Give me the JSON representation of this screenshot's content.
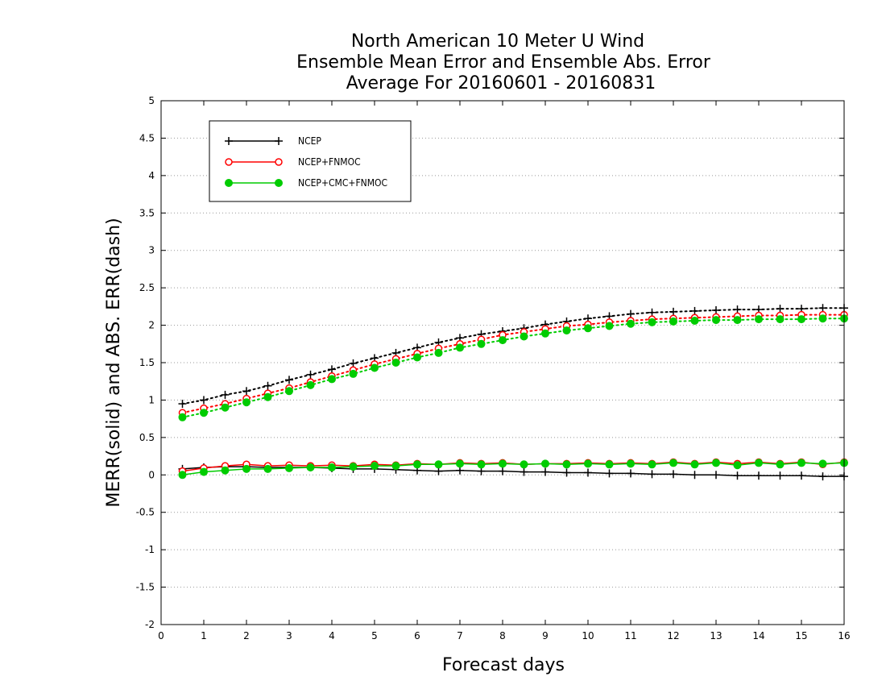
{
  "chart_data": {
    "type": "line",
    "title_lines": [
      "North American 10 Meter U Wind",
      "Ensemble Mean Error and Ensemble Abs. Error",
      "Average For 20160601 - 20160831"
    ],
    "xlabel": "Forecast days",
    "ylabel": "MERR(solid) and ABS. ERR(dash)",
    "xlim": [
      0,
      16
    ],
    "ylim": [
      -2,
      5
    ],
    "x_ticks": [
      "0",
      "1",
      "2",
      "3",
      "4",
      "5",
      "6",
      "7",
      "8",
      "9",
      "10",
      "11",
      "12",
      "13",
      "14",
      "15",
      "16"
    ],
    "y_ticks": [
      "5",
      "4.5",
      "4",
      "3.5",
      "3",
      "2.5",
      "2",
      "1.5",
      "1",
      "0.5",
      "0",
      "-0.5",
      "-1",
      "-1.5",
      "-2"
    ],
    "grid": true,
    "legend_position": "top-left",
    "x": [
      0.5,
      1,
      1.5,
      2,
      2.5,
      3,
      3.5,
      4,
      4.5,
      5,
      5.5,
      6,
      6.5,
      7,
      7.5,
      8,
      8.5,
      9,
      9.5,
      10,
      10.5,
      11,
      11.5,
      12,
      12.5,
      13,
      13.5,
      14,
      14.5,
      15,
      15.5,
      16
    ],
    "series": [
      {
        "name": "NCEP",
        "color": "#000000",
        "marker": "plus",
        "merr": [
          0.08,
          0.1,
          0.11,
          0.11,
          0.1,
          0.1,
          0.1,
          0.09,
          0.08,
          0.08,
          0.07,
          0.06,
          0.05,
          0.06,
          0.05,
          0.05,
          0.04,
          0.04,
          0.03,
          0.03,
          0.02,
          0.02,
          0.01,
          0.01,
          0.0,
          0.0,
          -0.01,
          -0.01,
          -0.01,
          -0.01,
          -0.02,
          -0.02
        ],
        "abs_err": [
          0.95,
          1.0,
          1.07,
          1.12,
          1.19,
          1.27,
          1.34,
          1.41,
          1.49,
          1.56,
          1.63,
          1.7,
          1.77,
          1.83,
          1.88,
          1.92,
          1.96,
          2.01,
          2.05,
          2.09,
          2.12,
          2.15,
          2.17,
          2.18,
          2.19,
          2.2,
          2.21,
          2.21,
          2.22,
          2.22,
          2.23,
          2.23
        ]
      },
      {
        "name": "NCEP+FNMOC",
        "color": "#ff0000",
        "marker": "open-circle",
        "merr": [
          0.05,
          0.09,
          0.12,
          0.14,
          0.12,
          0.13,
          0.12,
          0.13,
          0.12,
          0.14,
          0.13,
          0.15,
          0.14,
          0.16,
          0.15,
          0.16,
          0.14,
          0.15,
          0.15,
          0.16,
          0.15,
          0.16,
          0.15,
          0.17,
          0.15,
          0.17,
          0.15,
          0.17,
          0.15,
          0.17,
          0.14,
          0.17
        ],
        "abs_err": [
          0.83,
          0.89,
          0.95,
          1.02,
          1.09,
          1.16,
          1.24,
          1.32,
          1.4,
          1.48,
          1.55,
          1.62,
          1.69,
          1.75,
          1.81,
          1.87,
          1.91,
          1.95,
          1.99,
          2.01,
          2.04,
          2.06,
          2.08,
          2.09,
          2.1,
          2.11,
          2.12,
          2.13,
          2.13,
          2.14,
          2.14,
          2.14
        ]
      },
      {
        "name": "NCEP+CMC+FNMOC",
        "color": "#00cc00",
        "marker": "filled-circle",
        "merr": [
          0.0,
          0.04,
          0.06,
          0.08,
          0.08,
          0.09,
          0.1,
          0.1,
          0.11,
          0.12,
          0.12,
          0.14,
          0.14,
          0.15,
          0.14,
          0.15,
          0.14,
          0.15,
          0.14,
          0.15,
          0.14,
          0.15,
          0.14,
          0.16,
          0.14,
          0.16,
          0.13,
          0.16,
          0.14,
          0.16,
          0.15,
          0.16
        ],
        "abs_err": [
          0.77,
          0.83,
          0.9,
          0.97,
          1.04,
          1.12,
          1.2,
          1.28,
          1.35,
          1.43,
          1.5,
          1.57,
          1.63,
          1.7,
          1.75,
          1.8,
          1.85,
          1.89,
          1.93,
          1.96,
          1.99,
          2.02,
          2.04,
          2.05,
          2.06,
          2.07,
          2.07,
          2.08,
          2.08,
          2.08,
          2.09,
          2.09
        ]
      }
    ]
  }
}
